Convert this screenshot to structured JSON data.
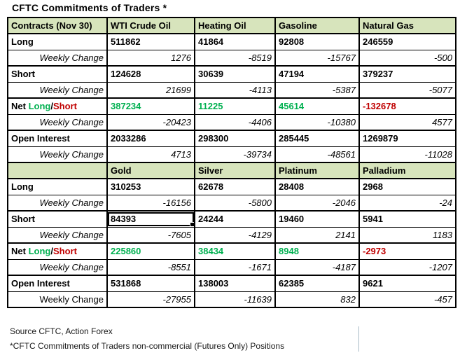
{
  "title": "CFTC Commitments of Traders *",
  "colors": {
    "header_bg": "#d7e4bc",
    "positive": "#00b050",
    "negative": "#c00000",
    "border": "#000000"
  },
  "weekly_row_label": "Weekly Change",
  "net_row_label": "Net Long/Short",
  "chart_data": [
    {
      "type": "table",
      "title": "CFTC Commitments of Traders *",
      "columns": [
        "Contracts (Nov 30)",
        "WTI Crude Oil",
        "Heating Oil",
        "Gasoline",
        "Natural Gas"
      ],
      "rows": [
        [
          "Long",
          511862,
          41864,
          92808,
          246559
        ],
        [
          "Weekly Change",
          1276,
          -8519,
          -15767,
          -500
        ],
        [
          "Short",
          124628,
          30639,
          47194,
          379237
        ],
        [
          "Weekly Change",
          21699,
          -4113,
          -5387,
          -5077
        ],
        [
          "Net Long/Short",
          387234,
          11225,
          45614,
          -132678
        ],
        [
          "Weekly Change",
          -20423,
          -4406,
          -10380,
          4577
        ],
        [
          "Open Interest",
          2033286,
          298300,
          285445,
          1269879
        ],
        [
          "Weekly Change",
          4713,
          -39734,
          -48561,
          -11028
        ]
      ]
    },
    {
      "type": "table",
      "columns": [
        "",
        "Gold",
        "Silver",
        "Platinum",
        "Palladium"
      ],
      "rows": [
        [
          "Long",
          310253,
          62678,
          28408,
          2968
        ],
        [
          "Weekly Change",
          -16156,
          -5800,
          -2046,
          -24
        ],
        [
          "Short",
          84393,
          24244,
          19460,
          5941
        ],
        [
          "Weekly Change",
          -7605,
          -4129,
          2141,
          1183
        ],
        [
          "Net Long/Short",
          225860,
          38434,
          8948,
          -2973
        ],
        [
          "Weekly Change",
          -8551,
          -1671,
          -4187,
          -1207
        ],
        [
          "Open Interest",
          531868,
          138003,
          62385,
          9621
        ],
        [
          "Weekly Change",
          -27955,
          -11639,
          832,
          -457
        ]
      ]
    }
  ],
  "selection": {
    "table": 1,
    "row": 2,
    "col": 1
  },
  "upright_weekly_label": {
    "table": 1,
    "row": 7
  },
  "footer": {
    "source": "Source CFTC, Action Forex",
    "note": "*CFTC Commitments of Traders non-commercial (Futures Only) Positions"
  }
}
